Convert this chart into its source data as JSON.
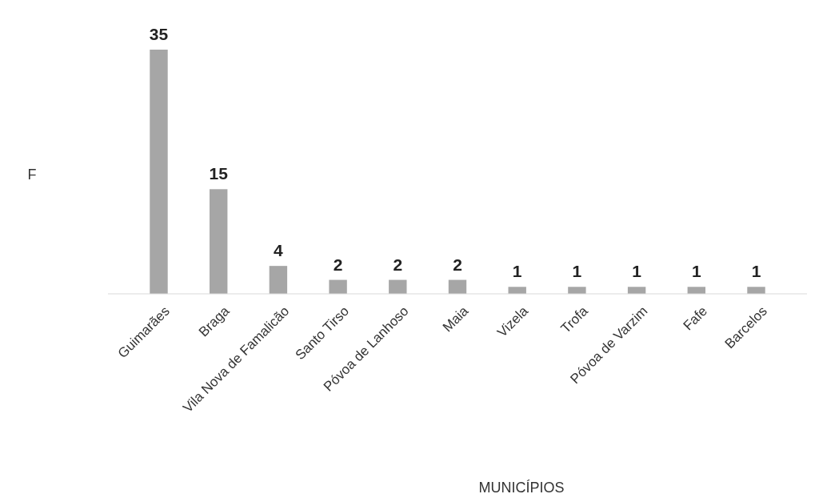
{
  "chart_data": {
    "type": "bar",
    "xlabel": "MUNICÍPIOS",
    "ylabel": "F",
    "categories": [
      "Guimarães",
      "Braga",
      "Vila Nova de Famalicão",
      "Santo Tirso",
      "Póvoa de Lanhoso",
      "Maia",
      "Vizela",
      "Trofa",
      "Póvoa de Varzim",
      "Fafe",
      "Barcelos"
    ],
    "values": [
      35,
      15,
      4,
      2,
      2,
      2,
      1,
      1,
      1,
      1,
      1
    ],
    "color": "#a6a6a6",
    "ylim": [
      0,
      35
    ],
    "data_labels": true,
    "tick_labels": "x"
  }
}
